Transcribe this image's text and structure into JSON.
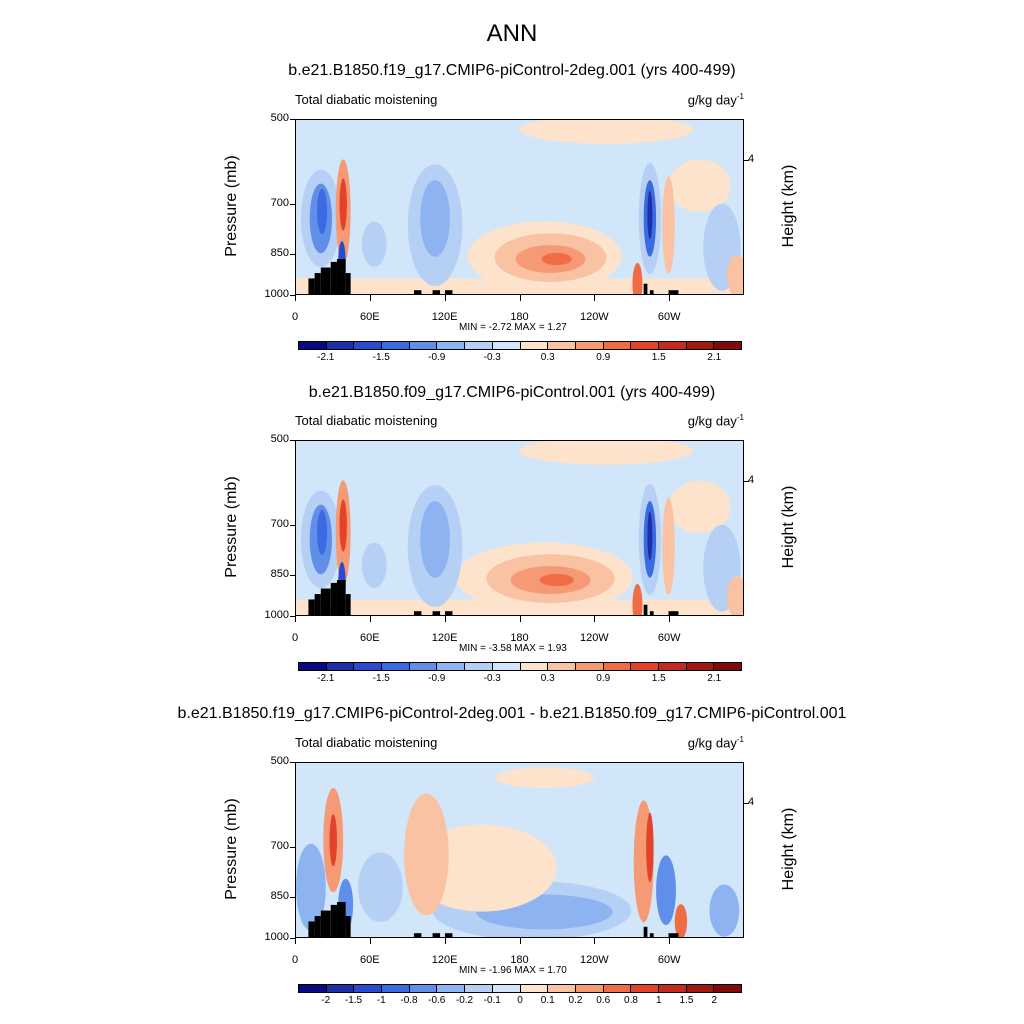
{
  "title": "ANN",
  "panels": [
    {
      "case": "b.e21.B1850.f19_g17.CMIP6-piControl-2deg.001 (yrs 400-499)",
      "left_label": "Total diabatic moistening",
      "units": "g/kg day",
      "units_exp": "-1",
      "min_text": "MIN =  -2.72  MAX =   1.27",
      "cbar_labels": [
        "-2.1",
        "-1.5",
        "-0.9",
        "-0.3",
        "0.3",
        "0.9",
        "1.5",
        "2.1"
      ],
      "cbar_colors": [
        "#0a0a80",
        "#1e2fa8",
        "#2a4bd0",
        "#3a6be0",
        "#5f8fe8",
        "#8db3f0",
        "#b6d0f5",
        "#d2e6fa",
        "#fde2cc",
        "#f9c2a2",
        "#f59a74",
        "#ef6c45",
        "#e2432a",
        "#c42a1e",
        "#a11a12",
        "#7e0a0a"
      ],
      "cbar_label_slots": [
        1,
        3,
        5,
        7,
        9,
        11,
        13,
        15
      ]
    },
    {
      "case": "b.e21.B1850.f09_g17.CMIP6-piControl.001 (yrs 400-499)",
      "left_label": "Total diabatic moistening",
      "units": "g/kg day",
      "units_exp": "-1",
      "min_text": "MIN =  -3.58  MAX =   1.93",
      "cbar_labels": [
        "-2.1",
        "-1.5",
        "-0.9",
        "-0.3",
        "0.3",
        "0.9",
        "1.5",
        "2.1"
      ],
      "cbar_colors": [
        "#0a0a80",
        "#1e2fa8",
        "#2a4bd0",
        "#3a6be0",
        "#5f8fe8",
        "#8db3f0",
        "#b6d0f5",
        "#d2e6fa",
        "#fde2cc",
        "#f9c2a2",
        "#f59a74",
        "#ef6c45",
        "#e2432a",
        "#c42a1e",
        "#a11a12",
        "#7e0a0a"
      ],
      "cbar_label_slots": [
        1,
        3,
        5,
        7,
        9,
        11,
        13,
        15
      ]
    },
    {
      "case": "b.e21.B1850.f19_g17.CMIP6-piControl-2deg.001 - b.e21.B1850.f09_g17.CMIP6-piControl.001",
      "left_label": "Total diabatic moistening",
      "units": "g/kg day",
      "units_exp": "-1",
      "min_text": "MIN =  -1.96  MAX =   1.70",
      "cbar_labels": [
        "-2",
        "-1.5",
        "-1",
        "-0.8",
        "-0.6",
        "-0.2",
        "-0.1",
        "0",
        "0.1",
        "0.2",
        "0.6",
        "0.8",
        "1",
        "1.5",
        "2"
      ],
      "cbar_colors": [
        "#0a0a80",
        "#1e2fa8",
        "#2a4bd0",
        "#3a6be0",
        "#5f8fe8",
        "#8db3f0",
        "#b6d0f5",
        "#d2e6fa",
        "#fde2cc",
        "#f9c2a2",
        "#f59a74",
        "#ef6c45",
        "#e2432a",
        "#c42a1e",
        "#a11a12",
        "#7e0a0a"
      ],
      "cbar_label_slots": [
        1,
        2,
        3,
        4,
        5,
        6,
        7,
        8,
        9,
        10,
        11,
        12,
        13,
        14,
        15
      ]
    }
  ],
  "axes": {
    "ylabel": "Pressure (mb)",
    "ylabel_right": "Height (km)",
    "yticks": [
      "500",
      "700",
      "850",
      "1000"
    ],
    "ytick_values": [
      500,
      700,
      850,
      1000
    ],
    "ylim": [
      1000,
      500
    ],
    "yscale": "log",
    "xticks": [
      "0",
      "60E",
      "120E",
      "180",
      "120W",
      "60W"
    ],
    "xtick_values": [
      0,
      60,
      120,
      180,
      240,
      300
    ],
    "xlim": [
      0,
      360
    ],
    "right_ticks": [
      "4"
    ]
  },
  "chart_data": [
    {
      "type": "heatmap",
      "title": "b.e21.B1850.f19_g17.CMIP6-piControl-2deg.001 (yrs 400-499)",
      "xlabel": "",
      "ylabel": "Pressure (mb)",
      "min": -2.72,
      "max": 1.27
    },
    {
      "type": "heatmap",
      "title": "b.e21.B1850.f09_g17.CMIP6-piControl.001 (yrs 400-499)",
      "xlabel": "",
      "ylabel": "Pressure (mb)",
      "min": -3.58,
      "max": 1.93
    },
    {
      "type": "heatmap",
      "title": "b.e21.B1850.f19_g17.CMIP6-piControl-2deg.001 - b.e21.B1850.f09_g17.CMIP6-piControl.001",
      "xlabel": "",
      "ylabel": "Pressure (mb)",
      "min": -1.96,
      "max": 1.7
    }
  ]
}
